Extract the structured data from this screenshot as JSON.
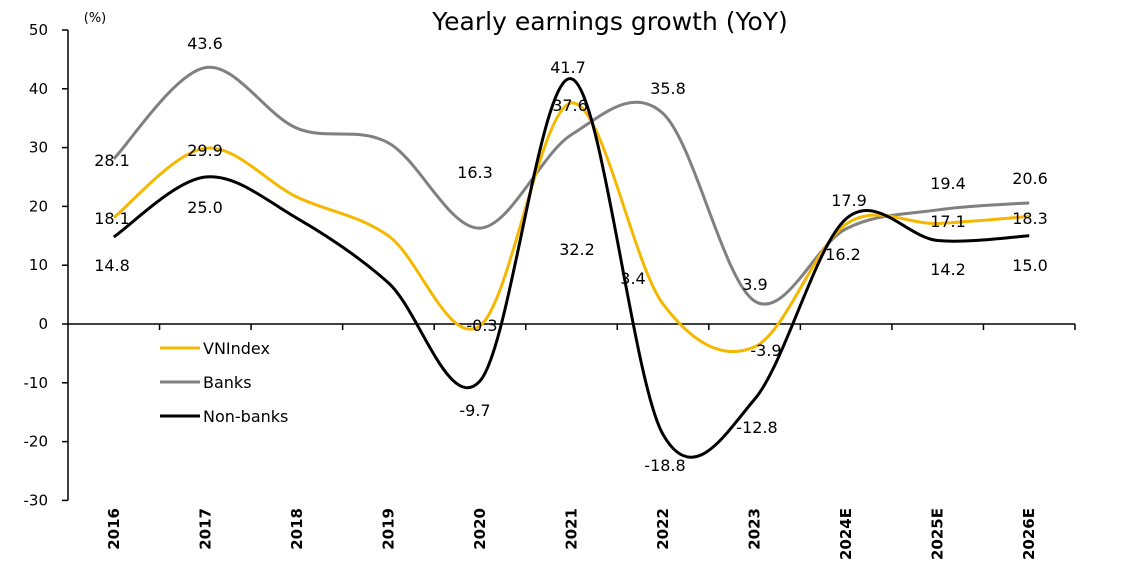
{
  "chart_data": {
    "type": "line",
    "title": "Yearly earnings growth (YoY)",
    "ylabel": "(%)",
    "xlabel": "",
    "ylim": [
      -30,
      50
    ],
    "yticks": [
      "-30",
      "-20",
      "-10",
      "0",
      "10",
      "20",
      "30",
      "40",
      "50"
    ],
    "categories": [
      "2016",
      "2017",
      "2018",
      "2019",
      "2020",
      "2021",
      "2022",
      "2023",
      "2024E",
      "2025E",
      "2026E"
    ],
    "smooth": true,
    "grid": false,
    "legend_placement": "center-left",
    "series": [
      {
        "name": "VNIndex",
        "color": "#F5B800",
        "values": [
          18.1,
          29.9,
          21.6,
          15.0,
          -0.3,
          37.6,
          3.4,
          -3.9,
          17.0,
          17.1,
          18.3
        ],
        "labels": [
          "18.1",
          "29.9",
          null,
          null,
          "-0.3",
          "37.6",
          "3.4",
          "-3.9",
          null,
          "17.1",
          "18.3"
        ]
      },
      {
        "name": "Banks",
        "color": "#808080",
        "values": [
          28.1,
          43.6,
          33.3,
          30.8,
          16.3,
          32.2,
          35.8,
          3.9,
          16.2,
          19.4,
          20.6
        ],
        "labels": [
          "28.1",
          "43.6",
          null,
          null,
          "16.3",
          "32.2",
          "35.8",
          "3.9",
          "16.2",
          "19.4",
          "20.6"
        ]
      },
      {
        "name": "Non-banks",
        "color": "#000000",
        "values": [
          14.8,
          25.0,
          18.0,
          7.0,
          -9.7,
          41.7,
          -18.8,
          -12.8,
          17.9,
          14.2,
          15.0
        ],
        "labels": [
          "14.8",
          "25.0",
          null,
          null,
          "-9.7",
          "41.7",
          "-18.8",
          "-12.8",
          "17.9",
          "14.2",
          "15.0"
        ]
      }
    ]
  }
}
